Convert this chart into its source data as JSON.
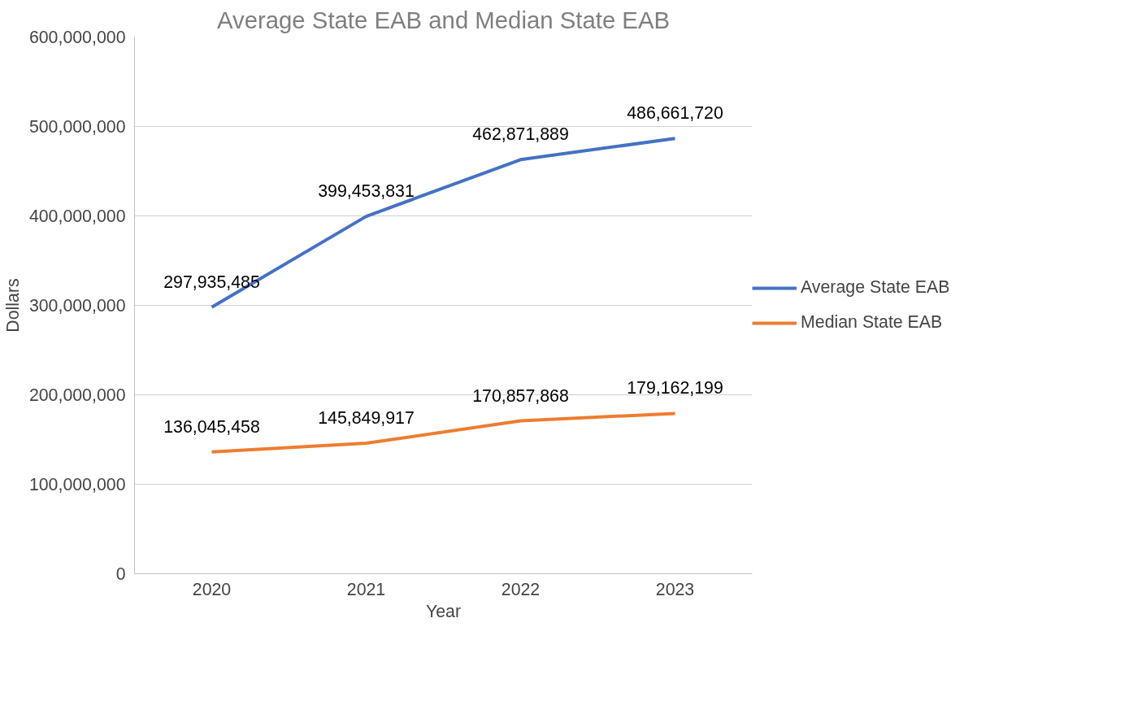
{
  "chart_data": {
    "type": "line",
    "title": "Average State EAB and Median State EAB",
    "xlabel": "Year",
    "ylabel": "Dollars",
    "categories": [
      "2020",
      "2021",
      "2022",
      "2023"
    ],
    "series": [
      {
        "name": "Average State EAB",
        "color": "#4472c4",
        "values": [
          297935485,
          399453831,
          462871889,
          486661720
        ],
        "value_labels": [
          "297,935,485",
          "399,453,831",
          "462,871,889",
          "486,661,720"
        ]
      },
      {
        "name": "Median State EAB",
        "color": "#ed7d31",
        "values": [
          136045458,
          145849917,
          170857868,
          179162199
        ],
        "value_labels": [
          "136,045,458",
          "145,849,917",
          "170,857,868",
          "179,162,199"
        ]
      }
    ],
    "ylim": [
      0,
      600000000
    ],
    "yticks": [
      0,
      {
        "value": 100000000,
        "label": "100,000,000"
      },
      {
        "value": 200000000,
        "label": "200,000,000"
      },
      {
        "value": 300000000,
        "label": "300,000,000"
      },
      {
        "value": 400000000,
        "label": "400,000,000"
      },
      {
        "value": 500000000,
        "label": "500,000,000"
      },
      {
        "value": 600000000,
        "label": "600,000,000"
      }
    ],
    "grid": "y",
    "legend": "right",
    "line_style": "solid",
    "marker": "none"
  }
}
